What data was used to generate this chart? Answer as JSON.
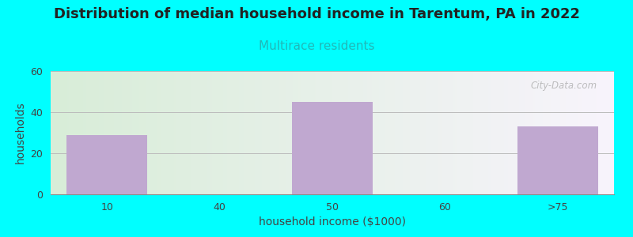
{
  "title": "Distribution of median household income in Tarentum, PA in 2022",
  "subtitle": "Multirace residents",
  "xlabel": "household income ($1000)",
  "ylabel": "households",
  "background_color": "#00ffff",
  "bar_color": "#c0a8d0",
  "categories": [
    "10",
    "40",
    "50",
    "60",
    ">75"
  ],
  "values": [
    29,
    0,
    45,
    0,
    33
  ],
  "ylim": [
    0,
    60
  ],
  "yticks": [
    0,
    20,
    40,
    60
  ],
  "title_fontsize": 13,
  "subtitle_fontsize": 11,
  "axis_label_fontsize": 10,
  "tick_fontsize": 9,
  "watermark": "City-Data.com",
  "subtitle_color": "#20b8b8",
  "title_color": "#222222",
  "tick_color": "#444444",
  "grad_color_left": "#d8edd8",
  "grad_color_right": "#f0eef8"
}
